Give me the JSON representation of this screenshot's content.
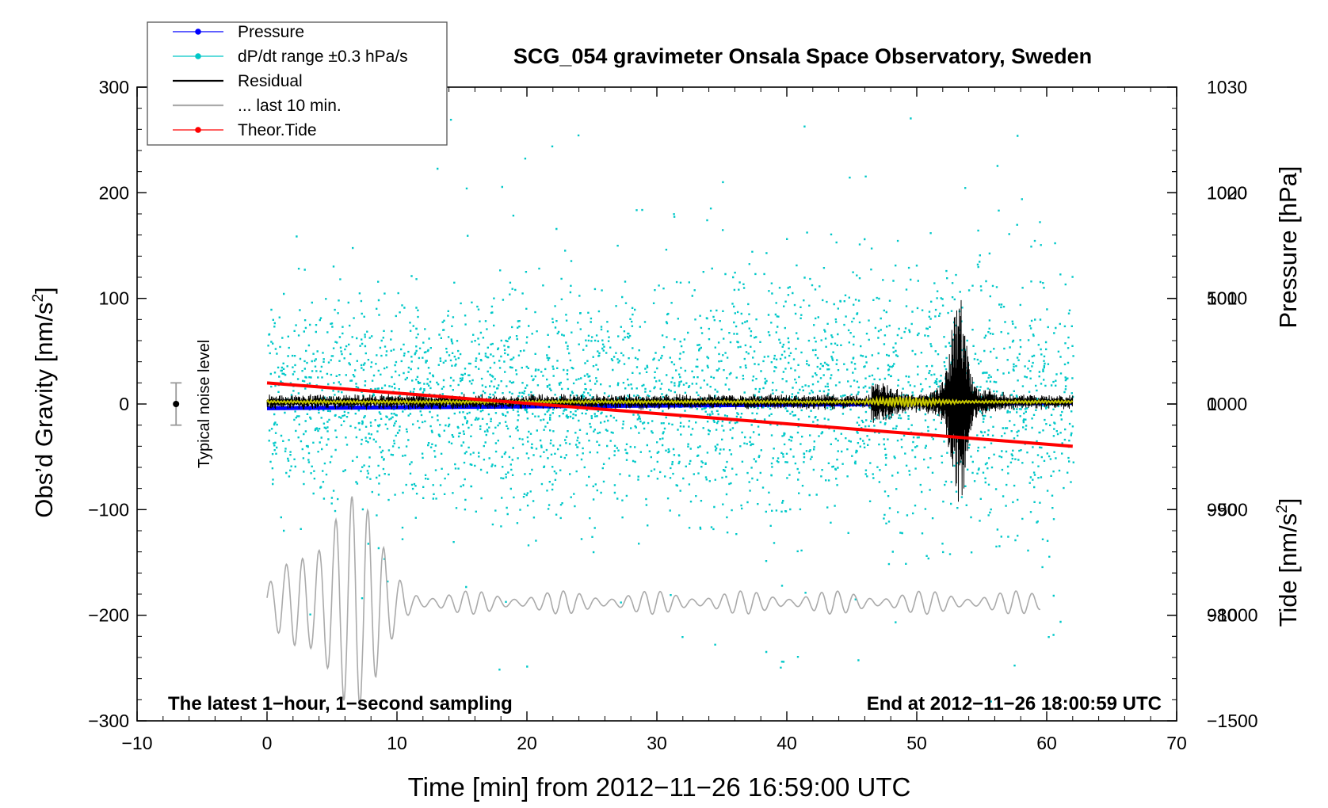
{
  "chart_data": {
    "type": "line",
    "title": "SCG_054 gravimeter Onsala Space Observatory, Sweden",
    "xlabel": "Time [min] from 2012−11−26 16:59:00 UTC",
    "ylabel_left": "Obs’d Gravity [nm/s²]",
    "ylabel_left_parts": {
      "main": "Obs’d Gravity [nm/s",
      "sup": "2",
      "close": "]"
    },
    "ylabel_pressure": "Pressure [hPa]",
    "ylabel_tide": "Tide [nm/s²]",
    "ylabel_tide_parts": {
      "main": "Tide [nm/s",
      "sup": "2",
      "close": "]"
    },
    "xlim": [
      -10,
      70
    ],
    "ylim_left": [
      -300,
      300
    ],
    "ylim_pressure": [
      970,
      1030
    ],
    "ylim_tide": [
      -1500,
      1500
    ],
    "x_ticks": [
      "−10",
      "0",
      "10",
      "20",
      "30",
      "40",
      "50",
      "60",
      "70"
    ],
    "x_tick_values": [
      -10,
      0,
      10,
      20,
      30,
      40,
      50,
      60,
      70
    ],
    "y_ticks_left": [
      "300",
      "200",
      "100",
      "0",
      "−100",
      "−200",
      "−300"
    ],
    "y_tick_values_left": [
      300,
      200,
      100,
      0,
      -100,
      -200,
      -300
    ],
    "y_ticks_pressure": [
      "1030",
      "1020",
      "1010",
      "1000",
      "990",
      "980"
    ],
    "y_tick_values_pressure": [
      1030,
      1020,
      1010,
      1000,
      990,
      980
    ],
    "y_ticks_tide": [
      "1000",
      "500",
      "0",
      "−500",
      "−1000",
      "−1500"
    ],
    "y_tick_values_tide": [
      1000,
      500,
      0,
      -500,
      -1000,
      -1500
    ],
    "legend": [
      {
        "label": "Pressure",
        "color": "#0000ff",
        "marker": true
      },
      {
        "label": "dP/dt range ±0.3 hPa/s",
        "color": "#00c8c8",
        "marker": true
      },
      {
        "label": "Residual",
        "color": "#000000",
        "marker": false
      },
      {
        "label": "... last 10 min.",
        "color": "#aaaaaa",
        "marker": false
      },
      {
        "label": "Theor.Tide",
        "color": "#ff0000",
        "marker": true
      }
    ],
    "legend_position": "top-left",
    "annotations": {
      "left": "The latest 1−hour, 1−second sampling",
      "right": "End at 2012−11−26 18:00:59 UTC",
      "noise": "Typical noise level"
    },
    "noise_bar": {
      "x": -7,
      "center": 0,
      "half_range": 20
    },
    "series": [
      {
        "name": "Pressure",
        "axis": "pressure",
        "color": "#0000ff",
        "x": [
          0,
          62
        ],
        "values": [
          999.6,
          1000.1
        ]
      },
      {
        "name": "dP/dt range ±0.3 hPa/s",
        "axis": "pressure",
        "color": "#00c8c8",
        "x_range": [
          0,
          62
        ],
        "center": 1000.5,
        "spread": 4.5,
        "note": "dense scatter of points around the pressure line"
      },
      {
        "name": "Residual",
        "axis": "left",
        "color": "#000000",
        "x_range": [
          0,
          62
        ],
        "center": 2,
        "amplitude_base": 5,
        "event": {
          "x": 53.2,
          "peak_max": 105,
          "peak_min": -104,
          "onset": 46.5
        }
      },
      {
        "name": "Residual smoothed",
        "axis": "left",
        "color": "#c8c800",
        "x_range": [
          0,
          62
        ],
        "center": 2,
        "amplitude_base": 1.5
      },
      {
        "name": "... last 10 min.",
        "axis": "left",
        "color": "#aaaaaa",
        "x_range": [
          0,
          59.5
        ],
        "center": -188,
        "amplitude_base": 10,
        "event": {
          "x": 6.6,
          "peak_max": -80,
          "peak_min": -290
        }
      },
      {
        "name": "Theor.Tide",
        "axis": "tide",
        "color": "#ff0000",
        "x": [
          0,
          62
        ],
        "values": [
          100,
          -200
        ]
      }
    ]
  }
}
